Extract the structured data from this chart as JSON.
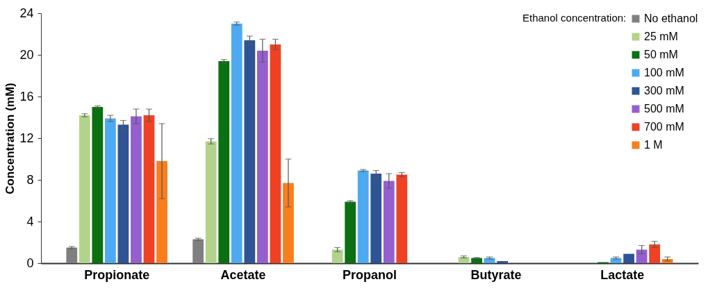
{
  "chart_data": {
    "type": "bar",
    "ylabel": "Concentration (mM)",
    "legend_title": "Ethanol concentration:",
    "categories": [
      "Propionate",
      "Acetate",
      "Propanol",
      "Butyrate",
      "Lactate"
    ],
    "ylim": [
      0,
      24
    ],
    "yticks": [
      0,
      4,
      8,
      12,
      16,
      20,
      24
    ],
    "grid": false,
    "legend": "top right",
    "series": [
      {
        "name": "No ethanol",
        "color": "#7f7f7f",
        "values": [
          1.5,
          2.3,
          null,
          null,
          null
        ],
        "errors": [
          0.1,
          0.1,
          null,
          null,
          null
        ]
      },
      {
        "name": "25 mM",
        "color": "#b3d38c",
        "values": [
          14.2,
          11.7,
          1.3,
          0.6,
          null
        ],
        "errors": [
          0.15,
          0.25,
          0.2,
          0.1,
          null
        ]
      },
      {
        "name": "50 mM",
        "color": "#0b7011",
        "values": [
          15.0,
          19.4,
          5.9,
          0.5,
          0.1
        ],
        "errors": [
          0.1,
          0.15,
          0.1,
          0.05,
          null
        ]
      },
      {
        "name": "100 mM",
        "color": "#4eaaf0",
        "values": [
          13.9,
          23.0,
          8.9,
          0.5,
          0.5
        ],
        "errors": [
          0.3,
          0.15,
          0.1,
          0.1,
          0.1
        ]
      },
      {
        "name": "300 mM",
        "color": "#2e5496",
        "values": [
          13.3,
          21.4,
          8.6,
          0.2,
          0.9
        ],
        "errors": [
          0.4,
          0.4,
          0.3,
          null,
          null
        ]
      },
      {
        "name": "500 mM",
        "color": "#955fcf",
        "values": [
          14.1,
          20.4,
          7.9,
          null,
          1.3
        ],
        "errors": [
          0.7,
          1.1,
          0.7,
          null,
          0.4
        ]
      },
      {
        "name": "700 mM",
        "color": "#ef4123",
        "values": [
          14.2,
          21.0,
          8.5,
          null,
          1.8
        ],
        "errors": [
          0.6,
          0.5,
          0.2,
          null,
          0.3
        ]
      },
      {
        "name": "1 M",
        "color": "#fa7e1e",
        "values": [
          9.8,
          7.7,
          null,
          null,
          0.4
        ],
        "errors": [
          3.6,
          2.3,
          null,
          null,
          0.2
        ]
      }
    ]
  }
}
